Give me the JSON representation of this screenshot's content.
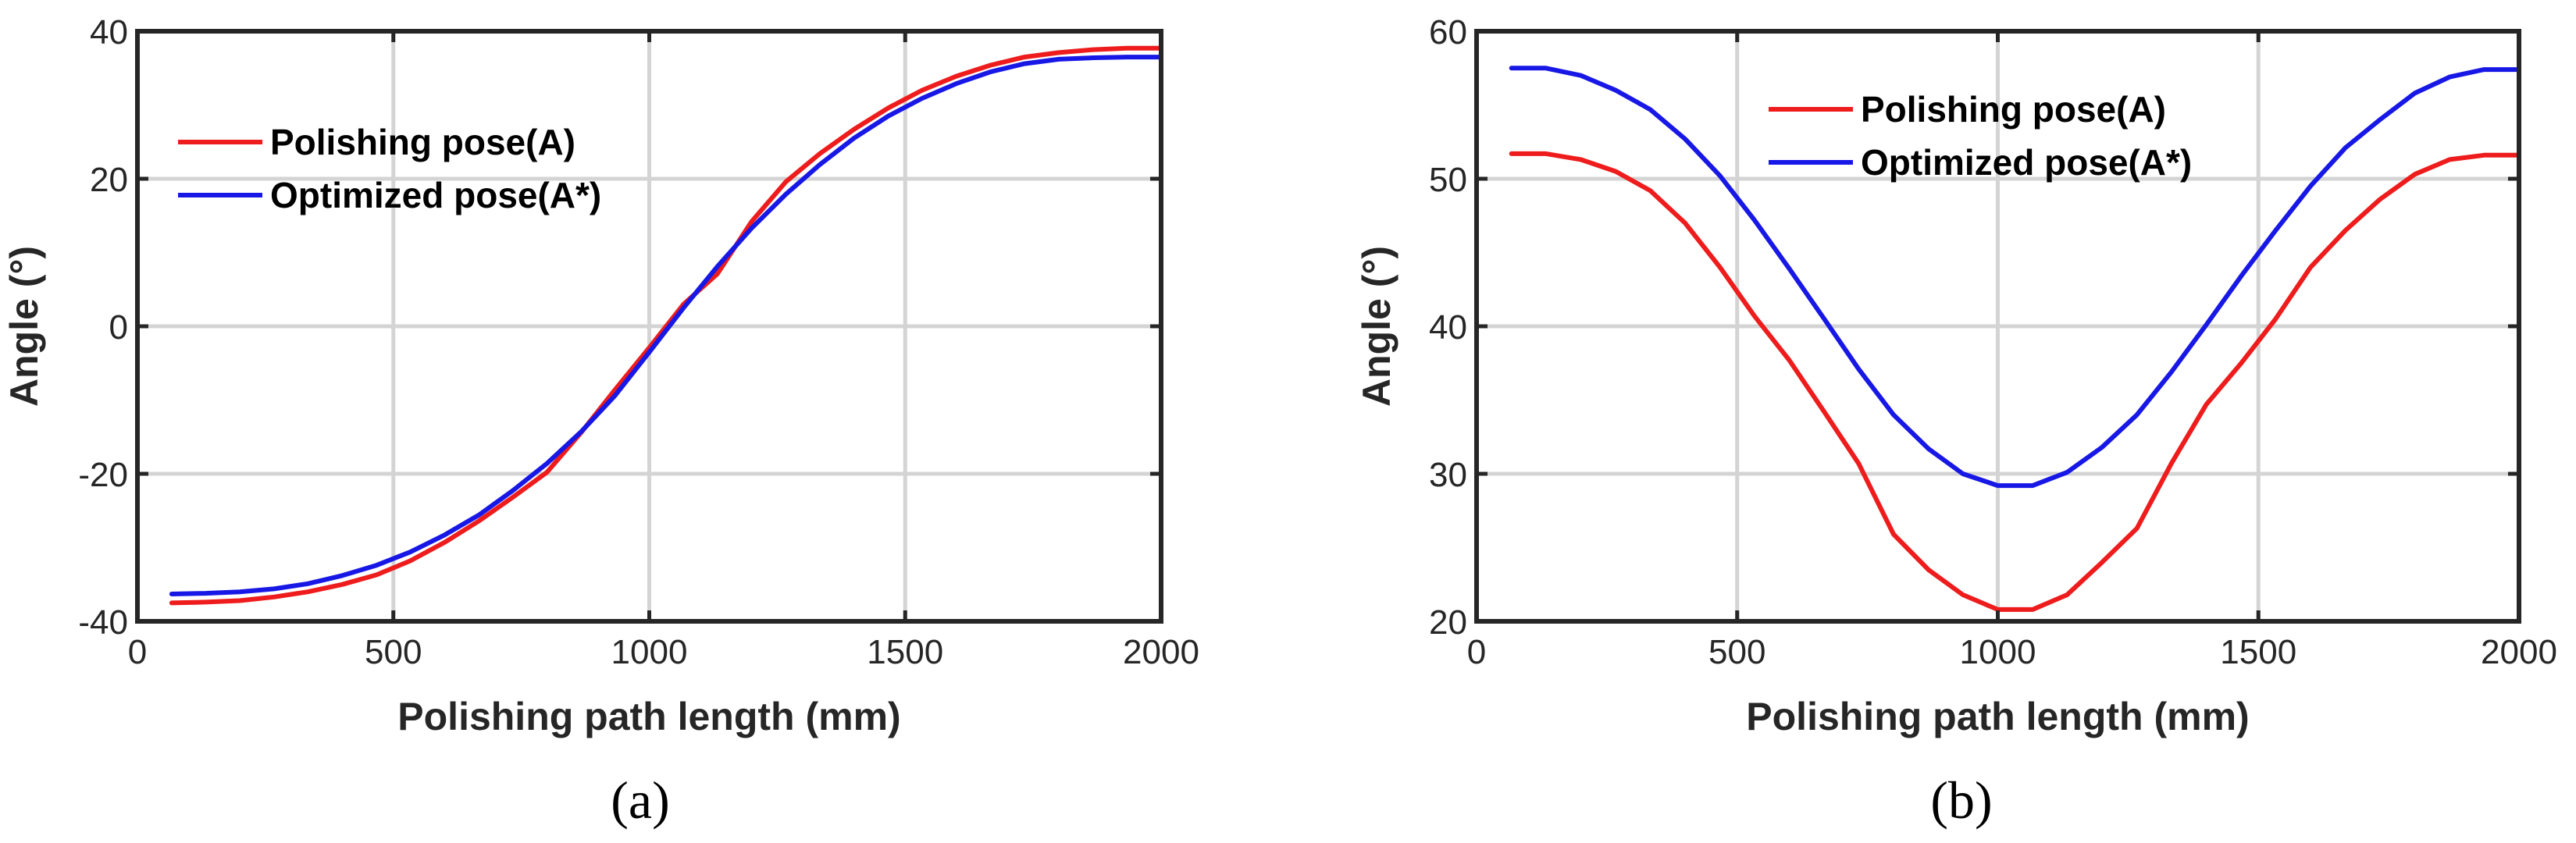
{
  "chart_data": [
    {
      "panel_label": "(a)",
      "type": "line",
      "xlabel": "Polishing path length (mm)",
      "ylabel": "Angle (°)",
      "xlim": [
        0,
        2000
      ],
      "ylim": [
        -40,
        40
      ],
      "xticks": [
        0,
        500,
        1000,
        1500,
        2000
      ],
      "yticks": [
        -40,
        -20,
        0,
        20,
        40
      ],
      "xtick_labels": [
        "0",
        "500",
        "1000",
        "1500",
        "2000"
      ],
      "ytick_labels": [
        "-40",
        "-20",
        "0",
        "20",
        "40"
      ],
      "grid": true,
      "legend_position": "top-left",
      "series": [
        {
          "name": "Polishing pose(A)",
          "color": "#ee1c1c",
          "x": [
            67,
            133,
            200,
            267,
            333,
            400,
            467,
            533,
            600,
            667,
            733,
            800,
            867,
            933,
            1000,
            1067,
            1133,
            1200,
            1267,
            1333,
            1400,
            1467,
            1533,
            1600,
            1667,
            1733,
            1800,
            1867,
            1933,
            2000
          ],
          "y": [
            -37.5,
            -37.4,
            -37.2,
            -36.7,
            -36.0,
            -35.0,
            -33.7,
            -31.8,
            -29.3,
            -26.4,
            -23.2,
            -19.8,
            -14.4,
            -8.6,
            -2.9,
            3.0,
            7.1,
            14.2,
            19.6,
            23.4,
            26.7,
            29.6,
            32.0,
            33.9,
            35.4,
            36.5,
            37.1,
            37.5,
            37.7,
            37.7
          ]
        },
        {
          "name": "Optimized pose(A*)",
          "color": "#1818e6",
          "x": [
            67,
            133,
            200,
            267,
            333,
            400,
            467,
            533,
            600,
            667,
            733,
            800,
            867,
            933,
            1000,
            1067,
            1133,
            1200,
            1267,
            1333,
            1400,
            1467,
            1533,
            1600,
            1667,
            1733,
            1800,
            1867,
            1933,
            2000
          ],
          "y": [
            -36.3,
            -36.2,
            -36.0,
            -35.6,
            -34.9,
            -33.8,
            -32.4,
            -30.6,
            -28.3,
            -25.6,
            -22.3,
            -18.6,
            -14.3,
            -9.4,
            -3.5,
            2.5,
            8.1,
            13.3,
            17.9,
            21.9,
            25.5,
            28.5,
            30.9,
            32.9,
            34.5,
            35.6,
            36.2,
            36.4,
            36.5,
            36.5
          ]
        }
      ]
    },
    {
      "panel_label": "(b)",
      "type": "line",
      "xlabel": "Polishing path length (mm)",
      "ylabel": "Angle (°)",
      "xlim": [
        0,
        2000
      ],
      "ylim": [
        20,
        60
      ],
      "xticks": [
        0,
        500,
        1000,
        1500,
        2000
      ],
      "yticks": [
        20,
        30,
        40,
        50,
        60
      ],
      "xtick_labels": [
        "0",
        "500",
        "1000",
        "1500",
        "2000"
      ],
      "ytick_labels": [
        "20",
        "30",
        "40",
        "50",
        "60"
      ],
      "grid": true,
      "legend_position": "top-center",
      "series": [
        {
          "name": "Polishing pose(A)",
          "color": "#ee1c1c",
          "x": [
            67,
            133,
            200,
            267,
            333,
            400,
            467,
            533,
            600,
            667,
            733,
            800,
            867,
            933,
            1000,
            1067,
            1133,
            1200,
            1267,
            1333,
            1400,
            1467,
            1533,
            1600,
            1667,
            1733,
            1800,
            1867,
            1933,
            2000
          ],
          "y": [
            51.7,
            51.7,
            51.3,
            50.5,
            49.2,
            47.0,
            44.0,
            40.7,
            37.7,
            34.2,
            30.7,
            25.9,
            23.5,
            21.8,
            20.8,
            20.8,
            21.8,
            24.0,
            26.3,
            30.7,
            34.7,
            37.5,
            40.5,
            44.0,
            46.5,
            48.6,
            50.3,
            51.3,
            51.6,
            51.6
          ]
        },
        {
          "name": "Optimized pose(A*)",
          "color": "#1818e6",
          "x": [
            67,
            133,
            200,
            267,
            333,
            400,
            467,
            533,
            600,
            667,
            733,
            800,
            867,
            933,
            1000,
            1067,
            1133,
            1200,
            1267,
            1333,
            1400,
            1467,
            1533,
            1600,
            1667,
            1733,
            1800,
            1867,
            1933,
            2000
          ],
          "y": [
            57.5,
            57.5,
            57.0,
            56.0,
            54.7,
            52.7,
            50.2,
            47.2,
            43.9,
            40.5,
            37.1,
            34.0,
            31.7,
            30.0,
            29.2,
            29.2,
            30.1,
            31.8,
            34.0,
            36.9,
            40.1,
            43.4,
            46.5,
            49.5,
            52.1,
            54.0,
            55.8,
            56.9,
            57.4,
            57.4
          ]
        }
      ]
    }
  ]
}
